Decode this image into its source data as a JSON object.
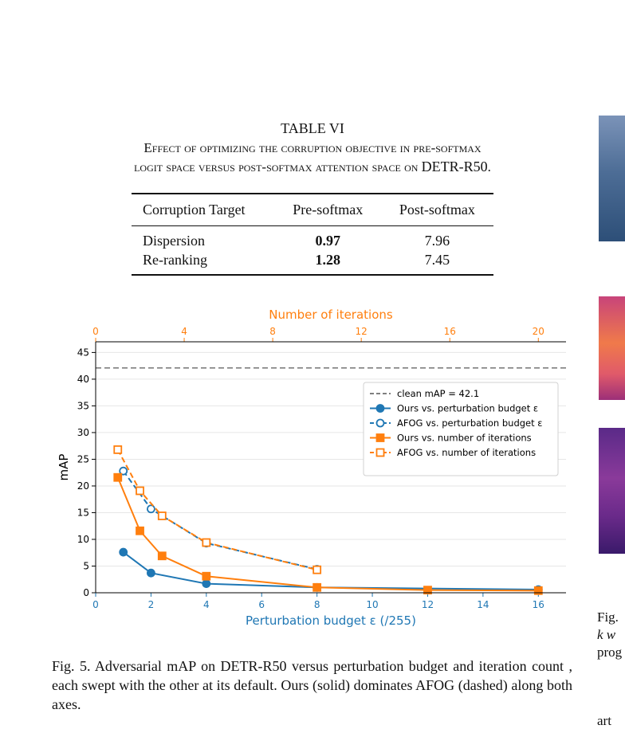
{
  "table": {
    "title": "TABLE VI",
    "caption_line1": "Effect of optimizing the corruption objective in pre-softmax",
    "caption_line2_prefix": "logit space versus post-softmax attention space on ",
    "caption_line2_model": "DETR-R50",
    "caption_line2_suffix": ".",
    "headers": [
      "Corruption Target",
      "Pre-softmax",
      "Post-softmax"
    ],
    "rows": [
      {
        "name": "Dispersion",
        "pre": "0.97",
        "post": "7.96"
      },
      {
        "name": "Re-ranking",
        "pre": "1.28",
        "post": "7.45"
      }
    ]
  },
  "figure_caption": "Fig. 5.  Adversarial mAP on DETR-R50 versus perturbation budget and iteration count , each swept with the other at its default. Ours (solid) dominates AFOG (dashed) along both axes.",
  "side_crop": {
    "line1": "Fig.",
    "line2": "k  w",
    "line3": "prog",
    "line4": "art"
  },
  "chart_data": {
    "type": "line",
    "ylabel": "mAP",
    "ylim": [
      0,
      47
    ],
    "yticks": [
      "0",
      "5",
      "10",
      "15",
      "20",
      "25",
      "30",
      "35",
      "40",
      "45"
    ],
    "xlabel_bottom": "Perturbation budget  ε  (/255)",
    "xlim_bottom": [
      0,
      17
    ],
    "xticks_bottom": [
      "0",
      "2",
      "4",
      "6",
      "8",
      "10",
      "12",
      "14",
      "16"
    ],
    "xlabel_top": "Number of iterations",
    "xlim_top": [
      0,
      21.25
    ],
    "xticks_top": [
      "0",
      "4",
      "8",
      "12",
      "16",
      "20"
    ],
    "grid": "horizontal",
    "legend_position": "center-right",
    "colors": {
      "blue": "#1f77b4",
      "orange": "#ff7f0e",
      "clean": "#7f7f7f"
    },
    "clean_line": {
      "name": "clean mAP = 42.1",
      "value": 42.1
    },
    "series": [
      {
        "name": "Ours  vs. perturbation budget ε",
        "axis": "bottom",
        "color": "#1f77b4",
        "dashed": false,
        "marker": "circle",
        "filled": true,
        "x": [
          1,
          2,
          4,
          8,
          16
        ],
        "y": [
          7.6,
          3.7,
          1.7,
          1.0,
          0.6
        ]
      },
      {
        "name": "AFOG  vs. perturbation budget ε",
        "axis": "bottom",
        "color": "#1f77b4",
        "dashed": true,
        "marker": "circle",
        "filled": false,
        "x": [
          1,
          2,
          4,
          8
        ],
        "y": [
          22.8,
          15.7,
          9.3,
          4.4
        ]
      },
      {
        "name": "Ours  vs. number of iterations",
        "axis": "top",
        "color": "#ff7f0e",
        "dashed": false,
        "marker": "square",
        "filled": true,
        "x": [
          1,
          2,
          3,
          5,
          10,
          15,
          20
        ],
        "y": [
          21.6,
          11.6,
          6.9,
          3.1,
          1.0,
          0.5,
          0.4
        ]
      },
      {
        "name": "AFOG  vs. number of iterations",
        "axis": "top",
        "color": "#ff7f0e",
        "dashed": true,
        "marker": "square",
        "filled": false,
        "x": [
          1,
          2,
          3,
          5,
          10
        ],
        "y": [
          26.8,
          19.1,
          14.4,
          9.4,
          4.3
        ]
      }
    ]
  }
}
